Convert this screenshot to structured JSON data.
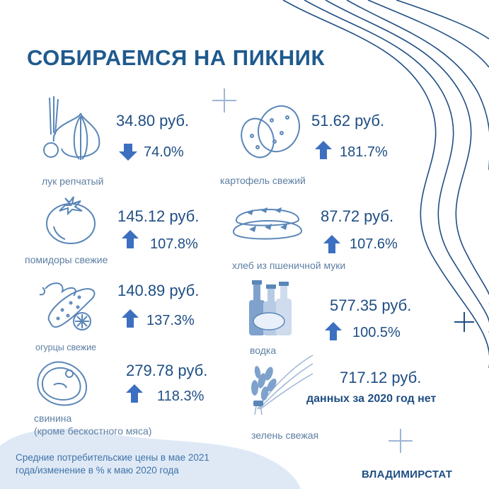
{
  "title": "СОБИРАЕМСЯ НА ПИКНИК",
  "items": [
    {
      "label": "лук репчатый",
      "price": "34.80 руб.",
      "change": "74.0%",
      "direction": "down",
      "icon": "onion-icon"
    },
    {
      "label": "картофель свежий",
      "price": "51.62 руб.",
      "change": "181.7%",
      "direction": "up",
      "icon": "potato-icon"
    },
    {
      "label": "помидоры свежие",
      "price": "145.12 руб.",
      "change": "107.8%",
      "direction": "up",
      "icon": "tomato-icon"
    },
    {
      "label": "хлеб из пшеничной муки",
      "price": "87.72 руб.",
      "change": "107.6%",
      "direction": "up",
      "icon": "bread-icon"
    },
    {
      "label": "огурцы свежие",
      "price": "140.89 руб.",
      "change": "137.3%",
      "direction": "up",
      "icon": "cucumber-icon"
    },
    {
      "label": "водка",
      "price": "577.35 руб.",
      "change": "100.5%",
      "direction": "up",
      "icon": "vodka-bottles-icon"
    },
    {
      "label": "свинина",
      "label2": "(кроме бескостного мяса)",
      "price": "279.78 руб.",
      "change": "118.3%",
      "direction": "up",
      "icon": "meat-steak-icon"
    },
    {
      "label": "зелень свежая",
      "price": "717.12 руб.",
      "change": "данных за 2020 год нет",
      "direction": "none",
      "icon": "greens-bunch-icon"
    }
  ],
  "footnote": {
    "line1": "Средние потребительские цены в мае 2021",
    "line2": "года/изменение в % к маю 2020 года"
  },
  "brand": "ВЛАДИМИРСТАТ",
  "colors": {
    "text": "#1f4e84",
    "arrow": "#3d6fc0",
    "icon": "#5a86b8",
    "wave": "#1f4e84",
    "blob": "#dfe9f6"
  }
}
